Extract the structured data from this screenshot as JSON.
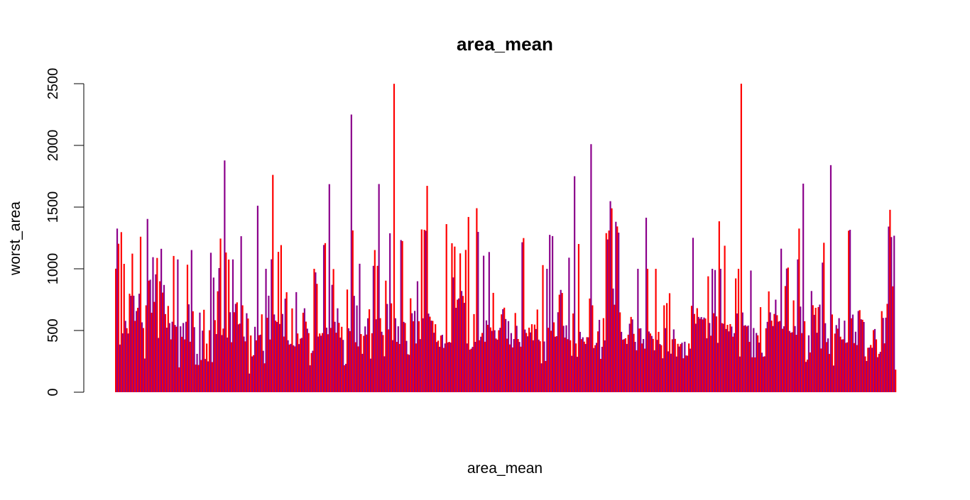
{
  "chart_data": {
    "type": "bar",
    "title": "area_mean",
    "xlabel": "area_mean",
    "ylabel": "worst_area",
    "ylim": [
      0,
      2500
    ],
    "yticks": [
      0,
      500,
      1000,
      1500,
      2000,
      2500
    ],
    "grid": false,
    "legend": "none",
    "colors": [
      "#ff0000",
      "#8b008b"
    ],
    "values": [
      1001,
      1326,
      1203,
      386,
      1297,
      477,
      1040,
      578,
      519,
      476,
      798,
      781,
      1123,
      782,
      578,
      658,
      684,
      798,
      1260,
      566,
      520,
      273,
      704,
      1404,
      904,
      912,
      644,
      1094,
      732,
      955,
      1088,
      440,
      899,
      1162,
      807,
      869,
      633,
      523,
      699,
      560,
      428,
      571,
      1104,
      545,
      531,
      1076,
      201,
      534,
      449,
      561,
      428,
      571,
      1033,
      712,
      409,
      1152,
      656,
      527,
      224,
      311,
      221,
      645,
      261,
      499,
      668,
      269,
      394,
      250,
      502,
      1130,
      244,
      929,
      584,
      471,
      818,
      1006,
      1245,
      463,
      516,
      1878,
      1132,
      443,
      1075,
      648,
      405,
      1076,
      648,
      716,
      728,
      550,
      556,
      1264,
      704,
      451,
      412,
      640,
      597,
      151,
      460,
      290,
      300,
      530,
      420,
      1511,
      462,
      466,
      631,
      336,
      234,
      1000,
      603,
      782,
      427,
      1077,
      1761,
      630,
      580,
      569,
      1137,
      553,
      1192,
      634,
      451,
      758,
      810,
      421,
      386,
      392,
      679,
      380,
      371,
      811,
      476,
      390,
      434,
      440,
      644,
      680,
      572,
      515,
      479,
      218,
      318,
      336,
      1000,
      971,
      878,
      451,
      476,
      458,
      479,
      1193,
      1208,
      523,
      470,
      1686,
      521,
      870,
      998,
      571,
      482,
      680,
      562,
      443,
      530,
      424,
      218,
      230,
      832,
      518,
      495,
      2250,
      1311,
      781,
      405,
      703,
      371,
      1041,
      471,
      311,
      457,
      533,
      467,
      599,
      672,
      272,
      478,
      1024,
      1152,
      591,
      1024,
      1687,
      600,
      490,
      463,
      291,
      904,
      715,
      509,
      1288,
      720,
      422,
      2499,
      599,
      408,
      534,
      391,
      1233,
      1225,
      570,
      561,
      416,
      308,
      303,
      761,
      640,
      575,
      659,
      395,
      899,
      575,
      430,
      1319,
      599,
      1316,
      1308,
      1672,
      637,
      612,
      580,
      578,
      482,
      551,
      407,
      418,
      368,
      459,
      465,
      359,
      395,
      1362,
      403,
      408,
      402,
      1207,
      930,
      1180,
      684,
      750,
      760,
      1125,
      820,
      780,
      724,
      1153,
      395,
      1420,
      345,
      353,
      367,
      633,
      408,
      1491,
      1299,
      421,
      450,
      480,
      1106,
      409,
      582,
      546,
      1136,
      525,
      497,
      805,
      502,
      435,
      426,
      502,
      522,
      631,
      673,
      685,
      593,
      434,
      576,
      387,
      479,
      363,
      431,
      642,
      538,
      431,
      407,
      369,
      1215,
      1249,
      508,
      480,
      453,
      523,
      484,
      551,
      421,
      548,
      512,
      670,
      426,
      413,
      234,
      1030,
      411,
      253,
      1000,
      522,
      1275,
      498,
      1265,
      566,
      450,
      454,
      648,
      790,
      829,
      804,
      538,
      443,
      542,
      430,
      1090,
      421,
      295,
      638,
      1750,
      395,
      287,
      1201,
      489,
      430,
      445,
      410,
      391,
      446,
      445,
      759,
      2010,
      704,
      358,
      381,
      400,
      493,
      586,
      270,
      368,
      600,
      420,
      1289,
      1238,
      1310,
      1548,
      1490,
      840,
      709,
      1381,
      1343,
      1293,
      647,
      489,
      426,
      430,
      437,
      391,
      466,
      555,
      610,
      590,
      473,
      408,
      340,
      1000,
      516,
      518,
      395,
      431,
      353,
      1414,
      1000,
      492,
      476,
      456,
      432,
      340,
      1000,
      424,
      489,
      390,
      381,
      275,
      704,
      519,
      722,
      331,
      802,
      312,
      429,
      509,
      432,
      289,
      392,
      370,
      390,
      401,
      275,
      409,
      298,
      296,
      395,
      353,
      700,
      1251,
      634,
      555,
      681,
      610,
      596,
      609,
      590,
      605,
      597,
      437,
      939,
      561,
      458,
      1000,
      640,
      990,
      614,
      400,
      1385,
      1000,
      560,
      555,
      1187,
      512,
      546,
      493,
      552,
      532,
      450,
      479,
      922,
      638,
      1000,
      289,
      2501,
      646,
      539,
      543,
      533,
      540,
      408,
      986,
      283,
      520,
      282,
      480,
      461,
      402,
      689,
      320,
      288,
      291,
      518,
      570,
      817,
      647,
      580,
      536,
      634,
      750,
      624,
      572,
      577,
      1163,
      514,
      534,
      860,
      1002,
      1010,
      496,
      482,
      486,
      744,
      536,
      465,
      1076,
      1326,
      694,
      479,
      1690,
      575,
      246,
      264,
      461,
      322,
      820,
      705,
      627,
      684,
      482,
      690,
      710,
      354,
      1050,
      1211,
      559,
      406,
      436,
      310,
      1840,
      630,
      216,
      475,
      544,
      515,
      600,
      450,
      427,
      429,
      580,
      400,
      404,
      1309,
      1316,
      599,
      629,
      398,
      490,
      382,
      658,
      665,
      591,
      587,
      569,
      290,
      253,
      360,
      362,
      383,
      360,
      503,
      512,
      428,
      284,
      311,
      327,
      657,
      602,
      396,
      604,
      716,
      1342,
      1478,
      1257,
      858,
      1268,
      183
    ]
  }
}
